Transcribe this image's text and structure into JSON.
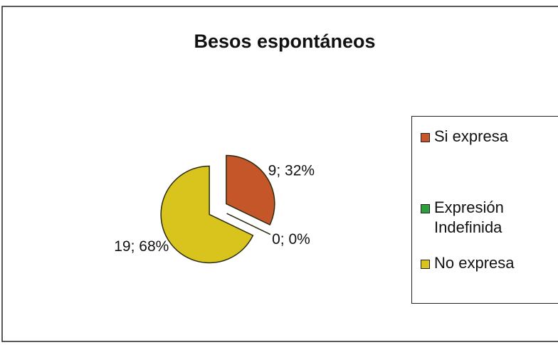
{
  "chart_data": {
    "type": "pie",
    "title": "Besos espontáneos",
    "categories": [
      "Si expresa",
      "Expresión Indefinida",
      "No expresa"
    ],
    "values": [
      9,
      0,
      19
    ],
    "value_labels": [
      "9; 32%",
      "0; 0%",
      "19; 68%"
    ],
    "colors": [
      "#c4562a",
      "#2e9e3c",
      "#d8c41c"
    ],
    "legend": "right"
  }
}
